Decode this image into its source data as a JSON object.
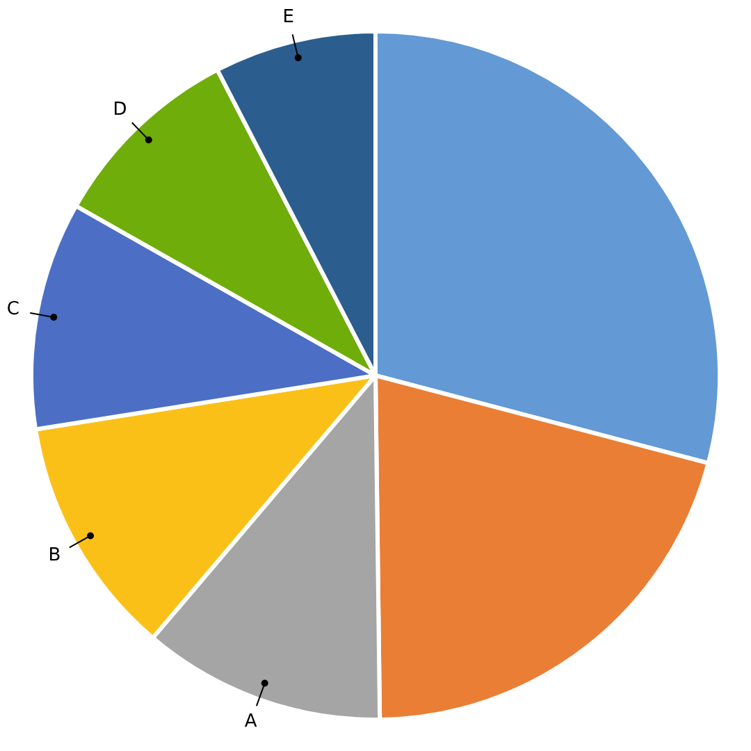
{
  "chart_data": {
    "type": "pie",
    "categories": [
      null,
      null,
      "A",
      "B",
      "C",
      "D",
      "E"
    ],
    "values": [
      29.1,
      20.7,
      11.4,
      11.3,
      10.7,
      9.2,
      7.6
    ],
    "colors": [
      "#6399d5",
      "#ea7e35",
      "#a5a5a5",
      "#fbc018",
      "#4c6fc5",
      "#6fad0a",
      "#2c5d8f"
    ],
    "legend": false
  }
}
